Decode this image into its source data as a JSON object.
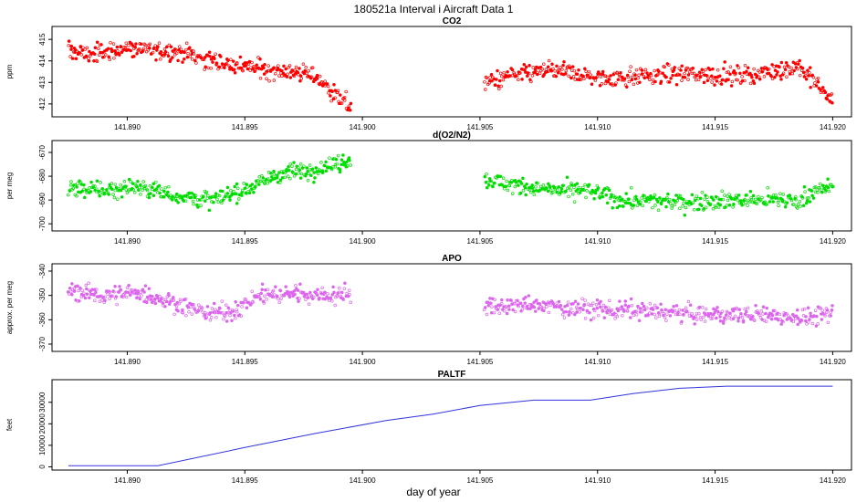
{
  "figure": {
    "title": "180521a   Interval i Aircraft Data 1",
    "xlabel": "day of year"
  },
  "chart_data": [
    {
      "type": "scatter",
      "title": "CO2",
      "ylabel": "ppm",
      "color": "#ff0000",
      "xlim": [
        141.8868,
        141.9208
      ],
      "ylim": [
        411.4,
        415.6
      ],
      "x_ticks": [
        141.89,
        141.895,
        141.9,
        141.905,
        141.91,
        141.915,
        141.92
      ],
      "x_tick_labels": [
        "141.890",
        "141.895",
        "141.900",
        "141.905",
        "141.910",
        "141.915",
        "141.920"
      ],
      "y_ticks": [
        412,
        413,
        414,
        415
      ],
      "y_tick_labels": [
        "412",
        "413",
        "414",
        "415"
      ],
      "segments": [
        {
          "x": [
            141.8875,
            141.8885,
            141.89,
            141.891,
            141.8925,
            141.8935,
            141.8945,
            141.896,
            141.897,
            141.898,
            141.8985,
            141.899,
            141.8995
          ],
          "y": [
            414.5,
            414.3,
            414.6,
            414.5,
            414.4,
            414.0,
            413.8,
            413.6,
            413.5,
            413.3,
            412.8,
            412.3,
            411.9
          ],
          "noise": 0.35,
          "n": 360
        },
        {
          "x": [
            141.9052,
            141.906,
            141.908,
            141.91,
            141.912,
            141.914,
            141.916,
            141.918,
            141.9185,
            141.9195,
            141.92
          ],
          "y": [
            413.0,
            413.2,
            413.6,
            413.2,
            413.3,
            413.4,
            413.3,
            413.6,
            413.8,
            412.7,
            412.2
          ],
          "noise": 0.35,
          "n": 420
        }
      ]
    },
    {
      "type": "scatter",
      "title": "d(O2/N2)",
      "ylabel": "per meg",
      "color": "#00dd00",
      "xlim": [
        141.8868,
        141.9208
      ],
      "ylim": [
        -703,
        -665
      ],
      "x_ticks": [
        141.89,
        141.895,
        141.9,
        141.905,
        141.91,
        141.915,
        141.92
      ],
      "x_tick_labels": [
        "141.890",
        "141.895",
        "141.900",
        "141.905",
        "141.910",
        "141.915",
        "141.920"
      ],
      "y_ticks": [
        -700,
        -690,
        -680,
        -670
      ],
      "y_tick_labels": [
        "-700",
        "-690",
        "-680",
        "-670"
      ],
      "segments": [
        {
          "x": [
            141.8875,
            141.889,
            141.8905,
            141.892,
            141.8935,
            141.8945,
            141.8955,
            141.8965,
            141.898,
            141.8995
          ],
          "y": [
            -685,
            -686,
            -684,
            -688,
            -690,
            -688,
            -683,
            -679,
            -677,
            -673
          ],
          "noise": 3.0,
          "n": 360
        },
        {
          "x": [
            141.9052,
            141.9065,
            141.908,
            141.9095,
            141.911,
            141.913,
            141.915,
            141.917,
            141.9185,
            141.9195,
            141.92
          ],
          "y": [
            -681,
            -684,
            -686,
            -686,
            -690,
            -691,
            -690,
            -690,
            -690,
            -685,
            -685
          ],
          "noise": 3.0,
          "n": 420
        }
      ]
    },
    {
      "type": "scatter",
      "title": "APO",
      "ylabel": "approx. per meg",
      "color": "#dd66ee",
      "xlim": [
        141.8868,
        141.9208
      ],
      "ylim": [
        -373,
        -337
      ],
      "x_ticks": [
        141.89,
        141.895,
        141.9,
        141.905,
        141.91,
        141.915,
        141.92
      ],
      "x_tick_labels": [
        "141.890",
        "141.895",
        "141.900",
        "141.905",
        "141.910",
        "141.915",
        "141.920"
      ],
      "y_ticks": [
        -370,
        -360,
        -350,
        -340
      ],
      "y_tick_labels": [
        "-370",
        "-360",
        "-350",
        "-340"
      ],
      "segments": [
        {
          "x": [
            141.8875,
            141.889,
            141.8905,
            141.892,
            141.8935,
            141.8945,
            141.8955,
            141.897,
            141.8985,
            141.8995
          ],
          "y": [
            -348,
            -350,
            -349,
            -353,
            -357,
            -357,
            -350,
            -349,
            -350,
            -349
          ],
          "noise": 3.0,
          "n": 360
        },
        {
          "x": [
            141.9052,
            141.907,
            141.909,
            141.911,
            141.913,
            141.915,
            141.917,
            141.919,
            141.92
          ],
          "y": [
            -355,
            -354,
            -355,
            -356,
            -357,
            -358,
            -358,
            -359,
            -358
          ],
          "noise": 3.0,
          "n": 420
        }
      ]
    },
    {
      "type": "line",
      "title": "PALTF",
      "ylabel": "feet",
      "color": "#3333dd",
      "xlim": [
        141.8868,
        141.9208
      ],
      "ylim": [
        -1500,
        40500
      ],
      "x_ticks": [
        141.89,
        141.895,
        141.9,
        141.905,
        141.91,
        141.915,
        141.92
      ],
      "x_tick_labels": [
        "141.890",
        "141.895",
        "141.900",
        "141.905",
        "141.910",
        "141.915",
        "141.920"
      ],
      "y_ticks": [
        0,
        10000,
        20000,
        30000
      ],
      "y_tick_labels": [
        "0",
        "10000",
        "20000",
        "30000"
      ],
      "x": [
        141.8875,
        141.8913,
        141.895,
        141.898,
        141.901,
        141.903,
        141.905,
        141.9073,
        141.9097,
        141.9115,
        141.9135,
        141.9155,
        141.9175,
        141.92
      ],
      "y": [
        500,
        500,
        9000,
        15500,
        21500,
        24500,
        28500,
        31000,
        31000,
        34000,
        36500,
        37500,
        37500,
        37500
      ]
    }
  ]
}
